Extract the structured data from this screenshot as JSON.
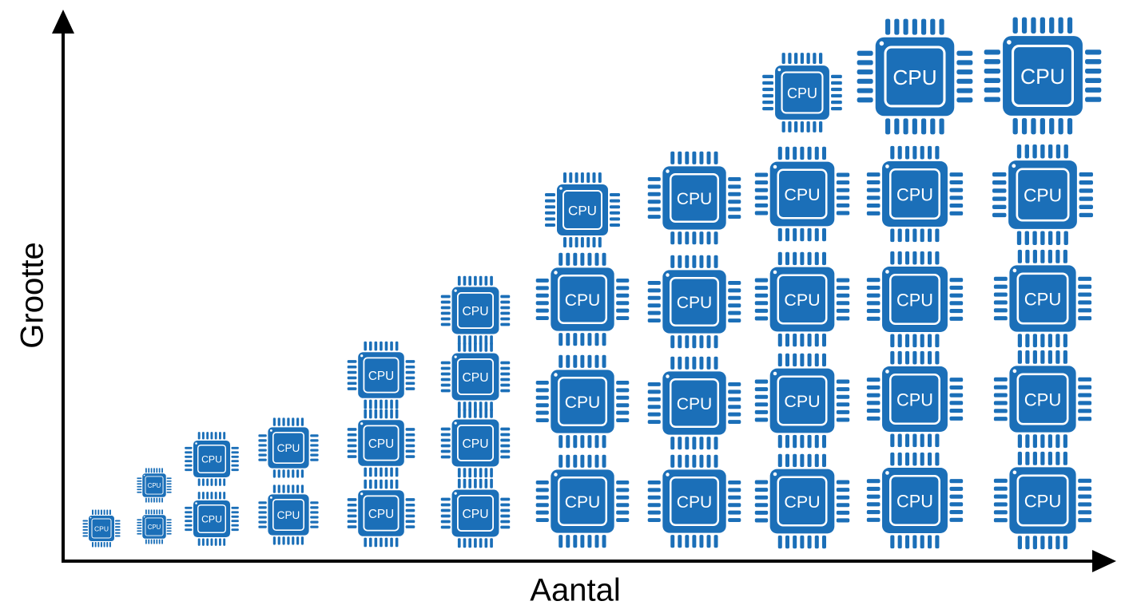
{
  "axes": {
    "y_label": "Grootte",
    "x_label": "Aantal"
  },
  "chip_label": "CPU",
  "chip_color": "#1b6fb8",
  "columns": [
    {
      "count": 1
    },
    {
      "count": 2
    },
    {
      "count": 2
    },
    {
      "count": 2
    },
    {
      "count": 3
    },
    {
      "count": 4
    },
    {
      "count": 4
    },
    {
      "count": 4
    },
    {
      "count": 5
    },
    {
      "count": 5
    },
    {
      "count": 5
    }
  ]
}
